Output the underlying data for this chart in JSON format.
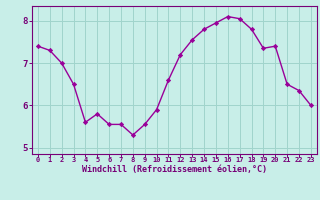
{
  "x": [
    0,
    1,
    2,
    3,
    4,
    5,
    6,
    7,
    8,
    9,
    10,
    11,
    12,
    13,
    14,
    15,
    16,
    17,
    18,
    19,
    20,
    21,
    22,
    23
  ],
  "y": [
    7.4,
    7.3,
    7.0,
    6.5,
    5.6,
    5.8,
    5.55,
    5.55,
    5.3,
    5.55,
    5.9,
    6.6,
    7.2,
    7.55,
    7.8,
    7.95,
    8.1,
    8.05,
    7.8,
    7.35,
    7.4,
    6.5,
    6.35,
    6.0
  ],
  "line_color": "#990099",
  "marker": "D",
  "marker_size": 2.2,
  "bg_color": "#c8eee8",
  "grid_color": "#a0d4cc",
  "xlabel": "Windchill (Refroidissement éolien,°C)",
  "xlabel_color": "#770077",
  "tick_color": "#770077",
  "xlim": [
    -0.5,
    23.5
  ],
  "ylim": [
    4.85,
    8.35
  ],
  "yticks": [
    5,
    6,
    7,
    8
  ],
  "xticks": [
    0,
    1,
    2,
    3,
    4,
    5,
    6,
    7,
    8,
    9,
    10,
    11,
    12,
    13,
    14,
    15,
    16,
    17,
    18,
    19,
    20,
    21,
    22,
    23
  ],
  "linewidth": 1.0,
  "spine_color": "#770077",
  "title_color": "#770077"
}
